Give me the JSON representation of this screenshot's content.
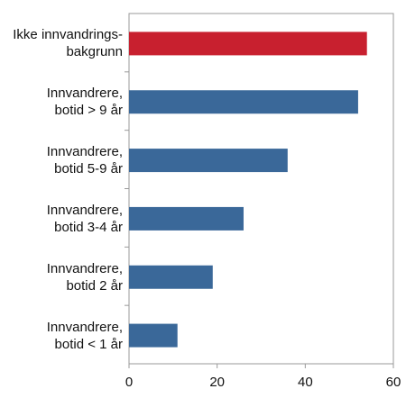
{
  "chart_data": {
    "type": "bar",
    "orientation": "horizontal",
    "categories": [
      "Ikke innvandrings-\nbakgrunn",
      "Innvandrere,\nbotid > 9 år",
      "Innvandrere,\nbotid 5-9 år",
      "Innvandrere,\nbotid 3-4 år",
      "Innvandrere,\nbotid 2 år",
      "Innvandrere,\nbotid < 1 år"
    ],
    "values": [
      54,
      52,
      36,
      26,
      19,
      11
    ],
    "colors": [
      "#c8202f",
      "#3a6899",
      "#3a6899",
      "#3a6899",
      "#3a6899",
      "#3a6899"
    ],
    "xlim": [
      0,
      60
    ],
    "xticks": [
      0,
      20,
      40,
      60
    ],
    "grid": false
  }
}
